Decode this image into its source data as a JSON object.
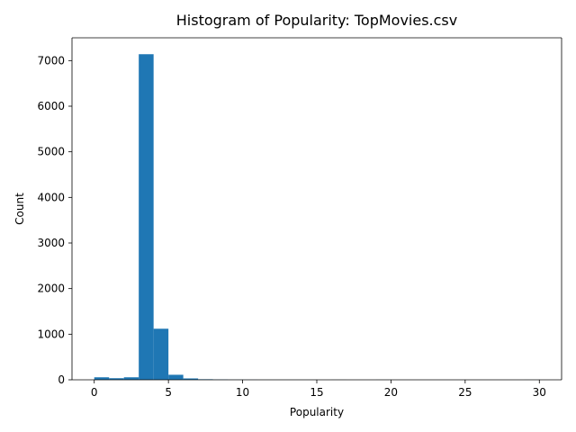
{
  "chart_data": {
    "type": "bar",
    "title": "Histogram of Popularity: TopMovies.csv",
    "xlabel": "Popularity",
    "ylabel": "Count",
    "bar_color": "#1f77b4",
    "xlim": [
      -1.5,
      31.5
    ],
    "ylim": [
      0,
      7500
    ],
    "xticks": [
      0,
      5,
      10,
      15,
      20,
      25,
      30
    ],
    "yticks": [
      0,
      1000,
      2000,
      3000,
      4000,
      5000,
      6000,
      7000
    ],
    "bins": [
      {
        "x0": 0.0,
        "x1": 1.0,
        "count": 55
      },
      {
        "x0": 1.0,
        "x1": 2.0,
        "count": 35
      },
      {
        "x0": 2.0,
        "x1": 3.0,
        "count": 55
      },
      {
        "x0": 3.0,
        "x1": 4.0,
        "count": 7140
      },
      {
        "x0": 4.0,
        "x1": 5.0,
        "count": 1120
      },
      {
        "x0": 5.0,
        "x1": 6.0,
        "count": 110
      },
      {
        "x0": 6.0,
        "x1": 7.0,
        "count": 30
      },
      {
        "x0": 7.0,
        "x1": 8.0,
        "count": 12
      },
      {
        "x0": 8.0,
        "x1": 9.0,
        "count": 6
      },
      {
        "x0": 9.0,
        "x1": 10.0,
        "count": 3
      },
      {
        "x0": 10.0,
        "x1": 11.0,
        "count": 2
      },
      {
        "x0": 11.0,
        "x1": 12.0,
        "count": 1
      },
      {
        "x0": 12.0,
        "x1": 13.0,
        "count": 1
      },
      {
        "x0": 13.0,
        "x1": 14.0,
        "count": 1
      },
      {
        "x0": 14.0,
        "x1": 15.0,
        "count": 1
      },
      {
        "x0": 15.0,
        "x1": 16.0,
        "count": 0
      },
      {
        "x0": 16.0,
        "x1": 17.0,
        "count": 1
      },
      {
        "x0": 17.0,
        "x1": 18.0,
        "count": 0
      },
      {
        "x0": 18.0,
        "x1": 19.0,
        "count": 0
      },
      {
        "x0": 19.0,
        "x1": 20.0,
        "count": 1
      },
      {
        "x0": 20.0,
        "x1": 21.0,
        "count": 0
      },
      {
        "x0": 21.0,
        "x1": 22.0,
        "count": 0
      },
      {
        "x0": 22.0,
        "x1": 23.0,
        "count": 0
      },
      {
        "x0": 23.0,
        "x1": 24.0,
        "count": 0
      },
      {
        "x0": 24.0,
        "x1": 25.0,
        "count": 0
      },
      {
        "x0": 25.0,
        "x1": 26.0,
        "count": 0
      },
      {
        "x0": 26.0,
        "x1": 27.0,
        "count": 0
      },
      {
        "x0": 27.0,
        "x1": 28.0,
        "count": 0
      },
      {
        "x0": 28.0,
        "x1": 29.0,
        "count": 0
      },
      {
        "x0": 29.0,
        "x1": 30.0,
        "count": 1
      }
    ]
  }
}
